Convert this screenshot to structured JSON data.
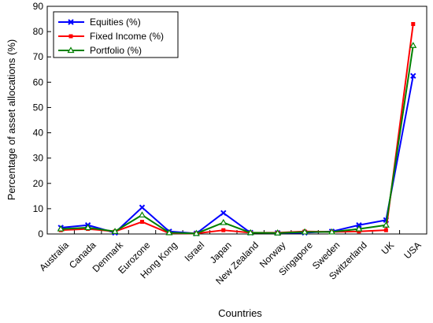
{
  "chart_data": {
    "type": "line",
    "title": "",
    "xlabel": "Countries",
    "ylabel": "Percentage of asset allocations (%)",
    "ylim": [
      0,
      90
    ],
    "yticks": [
      0,
      10,
      20,
      30,
      40,
      50,
      60,
      70,
      80,
      90
    ],
    "grid": false,
    "legend_position": "top-left",
    "categories": [
      "Australia",
      "Canada",
      "Denmark",
      "Eurozone",
      "Hong Kong",
      "Israel",
      "Japan",
      "New Zealand",
      "Norway",
      "Singapore",
      "Sweden",
      "Switzerland",
      "UK",
      "USA"
    ],
    "series": [
      {
        "name": "Equities (%)",
        "color": "#0000ff",
        "marker": "x",
        "values": [
          2.5,
          3.5,
          0.5,
          10.5,
          1.0,
          0.2,
          8.3,
          0.5,
          0.4,
          0.5,
          1.0,
          3.5,
          5.5,
          62.5
        ]
      },
      {
        "name": "Fixed Income (%)",
        "color": "#ff0000",
        "marker": "square",
        "values": [
          1.5,
          2.0,
          1.0,
          4.8,
          0.3,
          0.2,
          1.5,
          0.5,
          0.5,
          1.0,
          0.8,
          1.0,
          1.5,
          83.0
        ]
      },
      {
        "name": "Portfolio (%)",
        "color": "#008000",
        "marker": "triangle",
        "values": [
          2.0,
          2.5,
          1.0,
          7.5,
          0.5,
          0.2,
          4.5,
          0.5,
          0.4,
          0.8,
          0.8,
          2.0,
          3.5,
          74.5
        ]
      }
    ]
  }
}
